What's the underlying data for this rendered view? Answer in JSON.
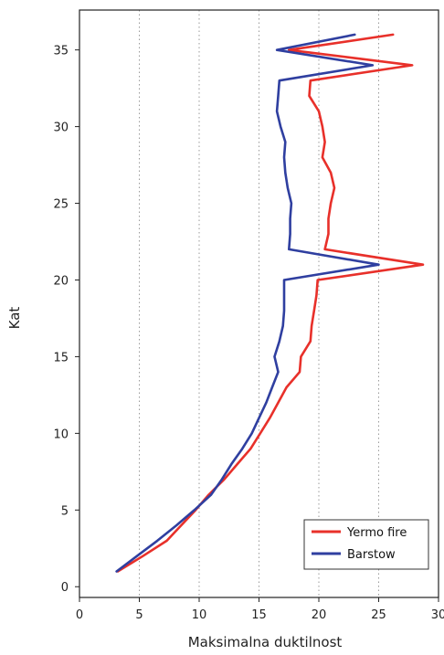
{
  "chart_data": {
    "type": "line",
    "title": "",
    "xlabel": "Maksimalna duktilnost",
    "ylabel": "Kat",
    "xlim": [
      0,
      30
    ],
    "ylim": [
      -0.7,
      37.6
    ],
    "xticks": [
      0,
      5,
      10,
      15,
      20,
      25,
      30
    ],
    "yticks": [
      0,
      5,
      10,
      15,
      20,
      25,
      30,
      35
    ],
    "grid": {
      "x": true,
      "y": false,
      "style": "dotted"
    },
    "legend_position": "bottom-right",
    "colors": {
      "Yermo fire": "#e8302a",
      "Barstow": "#2f3fa0"
    },
    "series": [
      {
        "name": "Yermo fire",
        "color": "#e8302a",
        "points": [
          [
            3.2,
            1
          ],
          [
            5.3,
            2
          ],
          [
            7.3,
            3
          ],
          [
            8.5,
            4
          ],
          [
            9.7,
            5
          ],
          [
            10.8,
            6
          ],
          [
            12.1,
            7
          ],
          [
            13.2,
            8
          ],
          [
            14.3,
            9
          ],
          [
            15.1,
            10
          ],
          [
            15.9,
            11
          ],
          [
            16.6,
            12
          ],
          [
            17.3,
            13
          ],
          [
            18.4,
            14
          ],
          [
            18.5,
            15
          ],
          [
            19.3,
            16
          ],
          [
            19.4,
            17
          ],
          [
            19.6,
            18
          ],
          [
            19.8,
            19
          ],
          [
            19.9,
            20
          ],
          [
            28.7,
            21
          ],
          [
            20.5,
            22
          ],
          [
            20.8,
            23
          ],
          [
            20.8,
            24
          ],
          [
            21.0,
            25
          ],
          [
            21.3,
            26
          ],
          [
            21.0,
            27
          ],
          [
            20.3,
            28
          ],
          [
            20.5,
            29
          ],
          [
            20.3,
            30
          ],
          [
            20.0,
            31
          ],
          [
            19.2,
            32
          ],
          [
            19.3,
            33
          ],
          [
            27.8,
            34
          ],
          [
            17.5,
            35
          ],
          [
            26.2,
            36
          ]
        ]
      },
      {
        "name": "Barstow",
        "color": "#2f3fa0",
        "points": [
          [
            3.1,
            1
          ],
          [
            4.8,
            2
          ],
          [
            6.5,
            3
          ],
          [
            8.1,
            4
          ],
          [
            9.6,
            5
          ],
          [
            11.0,
            6
          ],
          [
            11.9,
            7
          ],
          [
            12.7,
            8
          ],
          [
            13.6,
            9
          ],
          [
            14.4,
            10
          ],
          [
            15.0,
            11
          ],
          [
            15.6,
            12
          ],
          [
            16.1,
            13
          ],
          [
            16.6,
            14
          ],
          [
            16.3,
            15
          ],
          [
            16.7,
            16
          ],
          [
            17.0,
            17
          ],
          [
            17.1,
            18
          ],
          [
            17.1,
            19
          ],
          [
            17.1,
            20
          ],
          [
            25.0,
            21
          ],
          [
            17.5,
            22
          ],
          [
            17.6,
            23
          ],
          [
            17.6,
            24
          ],
          [
            17.7,
            25
          ],
          [
            17.4,
            26
          ],
          [
            17.2,
            27
          ],
          [
            17.1,
            28
          ],
          [
            17.2,
            29
          ],
          [
            16.8,
            30
          ],
          [
            16.5,
            31
          ],
          [
            16.6,
            32
          ],
          [
            16.7,
            33
          ],
          [
            24.5,
            34
          ],
          [
            16.5,
            35
          ],
          [
            23.0,
            36
          ]
        ]
      }
    ]
  }
}
